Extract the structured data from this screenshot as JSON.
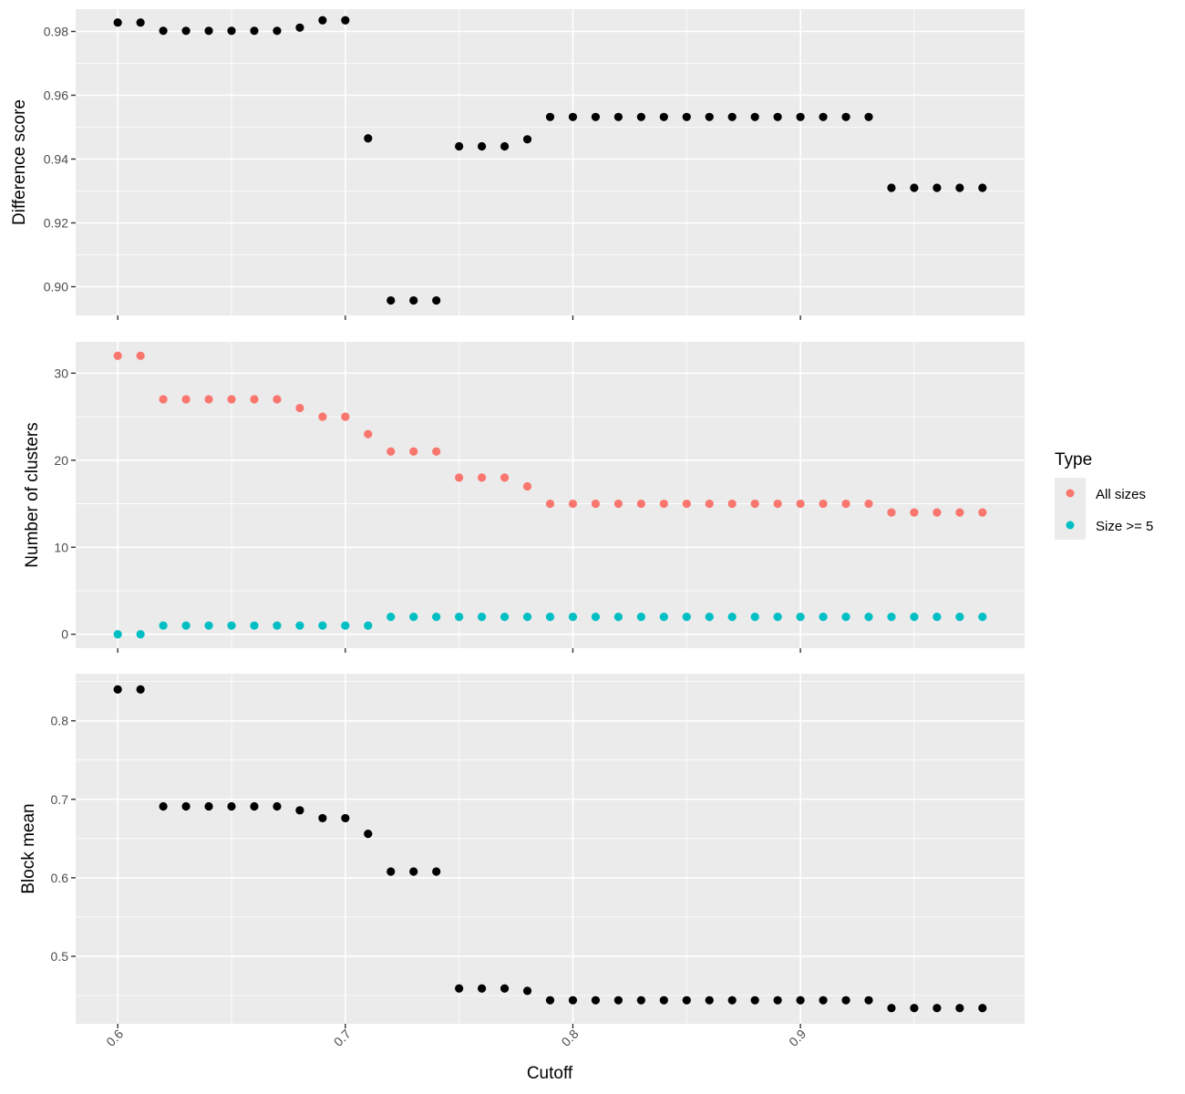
{
  "chart_data": [
    {
      "type": "scatter",
      "ylabel": "Difference score",
      "y_ticks": [
        "0.90",
        "0.92",
        "0.94",
        "0.96",
        "0.98"
      ],
      "ylim": [
        0.891,
        0.987
      ],
      "series": [
        {
          "color": "#000000",
          "x": [
            0.6,
            0.61,
            0.62,
            0.63,
            0.64,
            0.65,
            0.66,
            0.67,
            0.68,
            0.69,
            0.7,
            0.71,
            0.72,
            0.73,
            0.74,
            0.75,
            0.76,
            0.77,
            0.78,
            0.79,
            0.8,
            0.81,
            0.82,
            0.83,
            0.84,
            0.85,
            0.86,
            0.87,
            0.88,
            0.89,
            0.9,
            0.91,
            0.92,
            0.93,
            0.94,
            0.95,
            0.96,
            0.97,
            0.98
          ],
          "values": [
            0.9828,
            0.9828,
            0.9802,
            0.9802,
            0.9802,
            0.9802,
            0.9802,
            0.9802,
            0.9812,
            0.9835,
            0.9835,
            0.9465,
            0.8957,
            0.8957,
            0.8957,
            0.944,
            0.944,
            0.944,
            0.9462,
            0.9532,
            0.9532,
            0.9532,
            0.9532,
            0.9532,
            0.9532,
            0.9532,
            0.9532,
            0.9532,
            0.9532,
            0.9532,
            0.9532,
            0.9532,
            0.9532,
            0.9532,
            0.931,
            0.931,
            0.931,
            0.931,
            0.931
          ]
        }
      ]
    },
    {
      "type": "scatter",
      "ylabel": "Number of clusters",
      "y_ticks": [
        "0",
        "10",
        "20",
        "30"
      ],
      "ylim": [
        -1.6,
        33.6
      ],
      "series": [
        {
          "name": "All sizes",
          "color": "#f8766d",
          "x": [
            0.6,
            0.61,
            0.62,
            0.63,
            0.64,
            0.65,
            0.66,
            0.67,
            0.68,
            0.69,
            0.7,
            0.71,
            0.72,
            0.73,
            0.74,
            0.75,
            0.76,
            0.77,
            0.78,
            0.79,
            0.8,
            0.81,
            0.82,
            0.83,
            0.84,
            0.85,
            0.86,
            0.87,
            0.88,
            0.89,
            0.9,
            0.91,
            0.92,
            0.93,
            0.94,
            0.95,
            0.96,
            0.97,
            0.98
          ],
          "values": [
            32,
            32,
            27,
            27,
            27,
            27,
            27,
            27,
            26,
            25,
            25,
            23,
            21,
            21,
            21,
            18,
            18,
            18,
            17,
            15,
            15,
            15,
            15,
            15,
            15,
            15,
            15,
            15,
            15,
            15,
            15,
            15,
            15,
            15,
            14,
            14,
            14,
            14,
            14
          ]
        },
        {
          "name": "Size >= 5",
          "color": "#00bfc4",
          "x": [
            0.6,
            0.61,
            0.62,
            0.63,
            0.64,
            0.65,
            0.66,
            0.67,
            0.68,
            0.69,
            0.7,
            0.71,
            0.72,
            0.73,
            0.74,
            0.75,
            0.76,
            0.77,
            0.78,
            0.79,
            0.8,
            0.81,
            0.82,
            0.83,
            0.84,
            0.85,
            0.86,
            0.87,
            0.88,
            0.89,
            0.9,
            0.91,
            0.92,
            0.93,
            0.94,
            0.95,
            0.96,
            0.97,
            0.98
          ],
          "values": [
            0,
            0,
            1,
            1,
            1,
            1,
            1,
            1,
            1,
            1,
            1,
            1,
            2,
            2,
            2,
            2,
            2,
            2,
            2,
            2,
            2,
            2,
            2,
            2,
            2,
            2,
            2,
            2,
            2,
            2,
            2,
            2,
            2,
            2,
            2,
            2,
            2,
            2,
            2
          ]
        }
      ]
    },
    {
      "type": "scatter",
      "ylabel": "Block mean",
      "y_ticks": [
        "0.5",
        "0.6",
        "0.7",
        "0.8"
      ],
      "ylim": [
        0.414,
        0.86
      ],
      "series": [
        {
          "color": "#000000",
          "x": [
            0.6,
            0.61,
            0.62,
            0.63,
            0.64,
            0.65,
            0.66,
            0.67,
            0.68,
            0.69,
            0.7,
            0.71,
            0.72,
            0.73,
            0.74,
            0.75,
            0.76,
            0.77,
            0.78,
            0.79,
            0.8,
            0.81,
            0.82,
            0.83,
            0.84,
            0.85,
            0.86,
            0.87,
            0.88,
            0.89,
            0.9,
            0.91,
            0.92,
            0.93,
            0.94,
            0.95,
            0.96,
            0.97,
            0.98
          ],
          "values": [
            0.84,
            0.84,
            0.691,
            0.691,
            0.691,
            0.691,
            0.691,
            0.691,
            0.686,
            0.676,
            0.676,
            0.656,
            0.608,
            0.608,
            0.608,
            0.459,
            0.459,
            0.459,
            0.456,
            0.444,
            0.444,
            0.444,
            0.444,
            0.444,
            0.444,
            0.444,
            0.444,
            0.444,
            0.444,
            0.444,
            0.444,
            0.444,
            0.444,
            0.444,
            0.434,
            0.434,
            0.434,
            0.434,
            0.434
          ]
        }
      ]
    }
  ],
  "x_axis": {
    "label": "Cutoff",
    "ticks": [
      "0.6",
      "0.7",
      "0.8",
      "0.9"
    ],
    "xlim": [
      0.5815,
      0.9985
    ]
  },
  "legend": {
    "title": "Type",
    "items": [
      {
        "label": "All sizes",
        "color": "#f8766d"
      },
      {
        "label": "Size >= 5",
        "color": "#00bfc4"
      }
    ]
  }
}
